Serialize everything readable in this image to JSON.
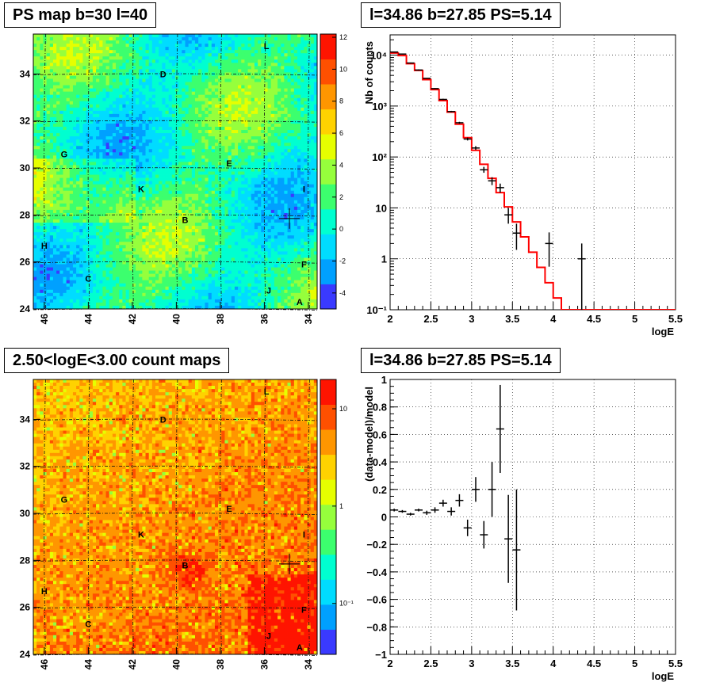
{
  "colors": {
    "map1_palette": [
      "#7f00ff",
      "#3a3aff",
      "#00a0ff",
      "#00dcff",
      "#00ffd0",
      "#3cff6e",
      "#96ff3c",
      "#e6ff00",
      "#ffd200",
      "#ff9600",
      "#ff5000",
      "#ff1400"
    ],
    "map2_palette": [
      "#7f00ff",
      "#3a3aff",
      "#00a0ff",
      "#00dcff",
      "#00ffd0",
      "#3cff6e",
      "#96ff3c",
      "#e6ff00",
      "#ffd200",
      "#ff9600",
      "#ff5000",
      "#ff1400"
    ],
    "model_line": "#ff0000",
    "data_marks": "#000000"
  },
  "chart_data": [
    {
      "type": "heatmap",
      "panel": "top-left",
      "title": "PS map b=30 l=40",
      "x_ticks": [
        "46",
        "44",
        "42",
        "40",
        "38",
        "36",
        "34"
      ],
      "x_tick_values": [
        46,
        44,
        42,
        40,
        38,
        36,
        34
      ],
      "y_ticks": [
        "24",
        "26",
        "28",
        "30",
        "32",
        "34"
      ],
      "y_tick_values": [
        24,
        26,
        28,
        30,
        32,
        34
      ],
      "xlim": [
        46.5,
        33.6
      ],
      "ylim": [
        24,
        35.7
      ],
      "z_ticks": [
        "-4",
        "-2",
        "0",
        "2",
        "4",
        "6",
        "8",
        "10",
        "12"
      ],
      "z_tick_values": [
        -4,
        -2,
        0,
        2,
        4,
        6,
        8,
        10,
        12
      ],
      "zlim": [
        -5,
        12.2
      ],
      "source_labels": [
        {
          "text": "L",
          "l": 35.9,
          "b": 35.2
        },
        {
          "text": "D",
          "l": 40.6,
          "b": 34.0
        },
        {
          "text": "G",
          "l": 45.1,
          "b": 30.6
        },
        {
          "text": "E",
          "l": 37.6,
          "b": 30.2
        },
        {
          "text": "K",
          "l": 41.6,
          "b": 29.1
        },
        {
          "text": "I",
          "l": 34.2,
          "b": 29.1
        },
        {
          "text": "B",
          "l": 39.6,
          "b": 27.8
        },
        {
          "text": "H",
          "l": 46.0,
          "b": 26.7
        },
        {
          "text": "F",
          "l": 34.2,
          "b": 25.9
        },
        {
          "text": "C",
          "l": 44.0,
          "b": 25.3
        },
        {
          "text": "J",
          "l": 35.8,
          "b": 24.8
        },
        {
          "text": "A",
          "l": 34.4,
          "b": 24.3
        }
      ],
      "marker": {
        "l": 34.86,
        "b": 27.85
      },
      "grid": true
    },
    {
      "type": "line",
      "panel": "top-right",
      "title": "l=34.86 b=27.85 PS=5.14",
      "xlabel": "logE",
      "ylabel": "Nb of counts",
      "log_y": true,
      "xlim": [
        2,
        5.5
      ],
      "ylim": [
        0.1,
        25000
      ],
      "x_ticks": [
        "2",
        "2.5",
        "3",
        "3.5",
        "4",
        "4.5",
        "5",
        "5.5"
      ],
      "x_tick_values": [
        2,
        2.5,
        3,
        3.5,
        4,
        4.5,
        5,
        5.5
      ],
      "y_ticks": [
        "10⁻¹",
        "1",
        "10",
        "10²",
        "10³",
        "10⁴"
      ],
      "y_tick_values": [
        0.1,
        1,
        10,
        100,
        1000,
        10000
      ],
      "series": [
        {
          "kind": "model_histogram",
          "bin_edges": [
            2,
            2.1,
            2.2,
            2.3,
            2.4,
            2.5,
            2.6,
            2.7,
            2.8,
            2.9,
            3.0,
            3.1,
            3.2,
            3.3,
            3.4,
            3.5,
            3.6,
            3.7,
            3.8,
            3.9,
            4.0,
            4.1,
            5.5
          ],
          "values": [
            11000,
            9800,
            6800,
            5000,
            3300,
            2100,
            1280,
            760,
            440,
            240,
            135,
            72,
            38,
            20,
            10.5,
            5.3,
            2.7,
            1.35,
            0.68,
            0.34,
            0.17,
            0.1
          ]
        },
        {
          "kind": "data_points",
          "x": [
            2.05,
            2.15,
            2.25,
            2.35,
            2.45,
            2.55,
            2.65,
            2.75,
            2.85,
            2.95,
            3.05,
            3.15,
            3.25,
            3.35,
            3.45,
            3.55,
            3.95,
            4.35
          ],
          "y": [
            11500,
            10500,
            7000,
            5100,
            3500,
            2200,
            1350,
            780,
            470,
            225,
            150,
            56,
            34,
            25,
            7.3,
            3.2,
            2,
            1
          ],
          "y_low": [
            11300,
            10300,
            6850,
            4950,
            3450,
            2150,
            1310,
            755,
            450,
            211,
            138,
            49,
            28,
            20,
            4.9,
            1.5,
            0.7,
            0.1
          ],
          "y_high": [
            11700,
            10700,
            7150,
            5250,
            3550,
            2250,
            1390,
            805,
            490,
            240,
            163,
            64,
            40,
            30,
            10,
            4.9,
            3.3,
            2
          ]
        }
      ],
      "grid": true
    },
    {
      "type": "heatmap",
      "panel": "bottom-left",
      "title": "2.50<logE<3.00 count maps",
      "x_ticks": [
        "46",
        "44",
        "42",
        "40",
        "38",
        "36",
        "34"
      ],
      "x_tick_values": [
        46,
        44,
        42,
        40,
        38,
        36,
        34
      ],
      "y_ticks": [
        "24",
        "26",
        "28",
        "30",
        "32",
        "34"
      ],
      "y_tick_values": [
        24,
        26,
        28,
        30,
        32,
        34
      ],
      "xlim": [
        46.5,
        33.6
      ],
      "ylim": [
        24,
        35.7
      ],
      "z_ticks": [
        "10⁻¹",
        "1",
        "10"
      ],
      "z_tick_values": [
        0.1,
        1,
        10
      ],
      "zlim": [
        0.03,
        20
      ],
      "log_z": true,
      "source_labels": [
        {
          "text": "L",
          "l": 35.9,
          "b": 35.2
        },
        {
          "text": "D",
          "l": 40.6,
          "b": 34.0
        },
        {
          "text": "G",
          "l": 45.1,
          "b": 30.6
        },
        {
          "text": "E",
          "l": 37.6,
          "b": 30.2
        },
        {
          "text": "K",
          "l": 41.6,
          "b": 29.1
        },
        {
          "text": "I",
          "l": 34.2,
          "b": 29.1
        },
        {
          "text": "B",
          "l": 39.6,
          "b": 27.8
        },
        {
          "text": "H",
          "l": 46.0,
          "b": 26.7
        },
        {
          "text": "F",
          "l": 34.2,
          "b": 25.9
        },
        {
          "text": "C",
          "l": 44.0,
          "b": 25.3
        },
        {
          "text": "J",
          "l": 35.8,
          "b": 24.8
        },
        {
          "text": "A",
          "l": 34.4,
          "b": 24.3
        }
      ],
      "marker": {
        "l": 34.86,
        "b": 27.85
      },
      "grid": true
    },
    {
      "type": "scatter",
      "panel": "bottom-right",
      "title": "l=34.86 b=27.85 PS=5.14",
      "xlabel": "logE",
      "ylabel": "(data-model)/model",
      "xlim": [
        2,
        5.5
      ],
      "ylim": [
        -1,
        1
      ],
      "x_ticks": [
        "2",
        "2.5",
        "3",
        "3.5",
        "4",
        "4.5",
        "5",
        "5.5"
      ],
      "x_tick_values": [
        2,
        2.5,
        3,
        3.5,
        4,
        4.5,
        5,
        5.5
      ],
      "y_ticks": [
        "−1",
        "−0.8",
        "−0.6",
        "−0.4",
        "−0.2",
        "0",
        "0.2",
        "0.4",
        "0.6",
        "0.8",
        "1"
      ],
      "y_tick_values": [
        -1,
        -0.8,
        -0.6,
        -0.4,
        -0.2,
        0,
        0.2,
        0.4,
        0.6,
        0.8,
        1
      ],
      "series": [
        {
          "kind": "data_points",
          "x": [
            2.05,
            2.15,
            2.25,
            2.35,
            2.45,
            2.55,
            2.65,
            2.75,
            2.85,
            2.95,
            3.05,
            3.15,
            3.25,
            3.35,
            3.45,
            3.55
          ],
          "y": [
            0.05,
            0.04,
            0.02,
            0.05,
            0.03,
            0.05,
            0.1,
            0.04,
            0.12,
            -0.08,
            0.2,
            -0.13,
            0.2,
            0.64,
            -0.16,
            -0.24
          ],
          "y_err": [
            0.01,
            0.01,
            0.01,
            0.01,
            0.015,
            0.02,
            0.025,
            0.03,
            0.045,
            0.06,
            0.09,
            0.1,
            0.2,
            0.32,
            0.32,
            0.44
          ]
        }
      ],
      "grid": true
    }
  ]
}
